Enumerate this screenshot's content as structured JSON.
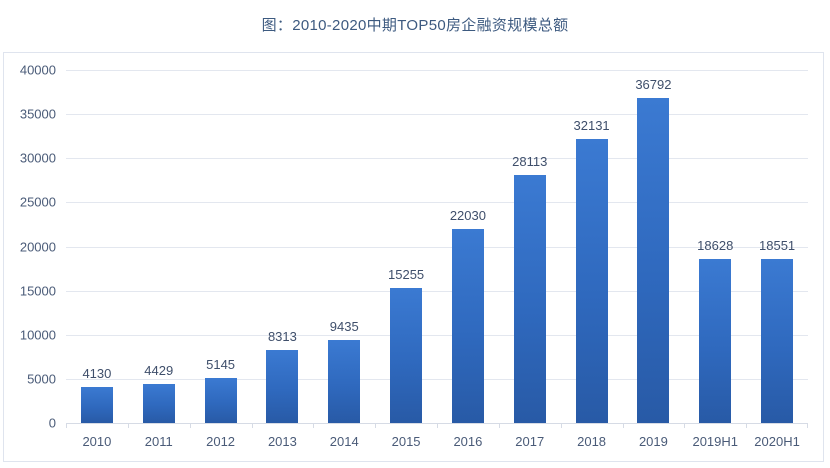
{
  "chart_data": {
    "type": "bar",
    "title": "图：2010-2020中期TOP50房企融资规模总额",
    "xlabel": "",
    "ylabel": "",
    "categories": [
      "2010",
      "2011",
      "2012",
      "2013",
      "2014",
      "2015",
      "2016",
      "2017",
      "2018",
      "2019",
      "2019H1",
      "2020H1"
    ],
    "values": [
      4130,
      4429,
      5145,
      8313,
      9435,
      15255,
      22030,
      28113,
      32131,
      36792,
      18628,
      18551
    ],
    "data_labels": [
      "4130",
      "4429",
      "5145",
      "8313",
      "9435",
      "15255",
      "22030",
      "28113",
      "32131",
      "36792",
      "18628",
      "18551"
    ],
    "ylim": [
      0,
      40000
    ],
    "yticks": [
      "0",
      "5000",
      "10000",
      "15000",
      "20000",
      "25000",
      "30000",
      "35000",
      "40000"
    ],
    "grid": true,
    "legend": null,
    "bar_color": "#2f69be"
  }
}
